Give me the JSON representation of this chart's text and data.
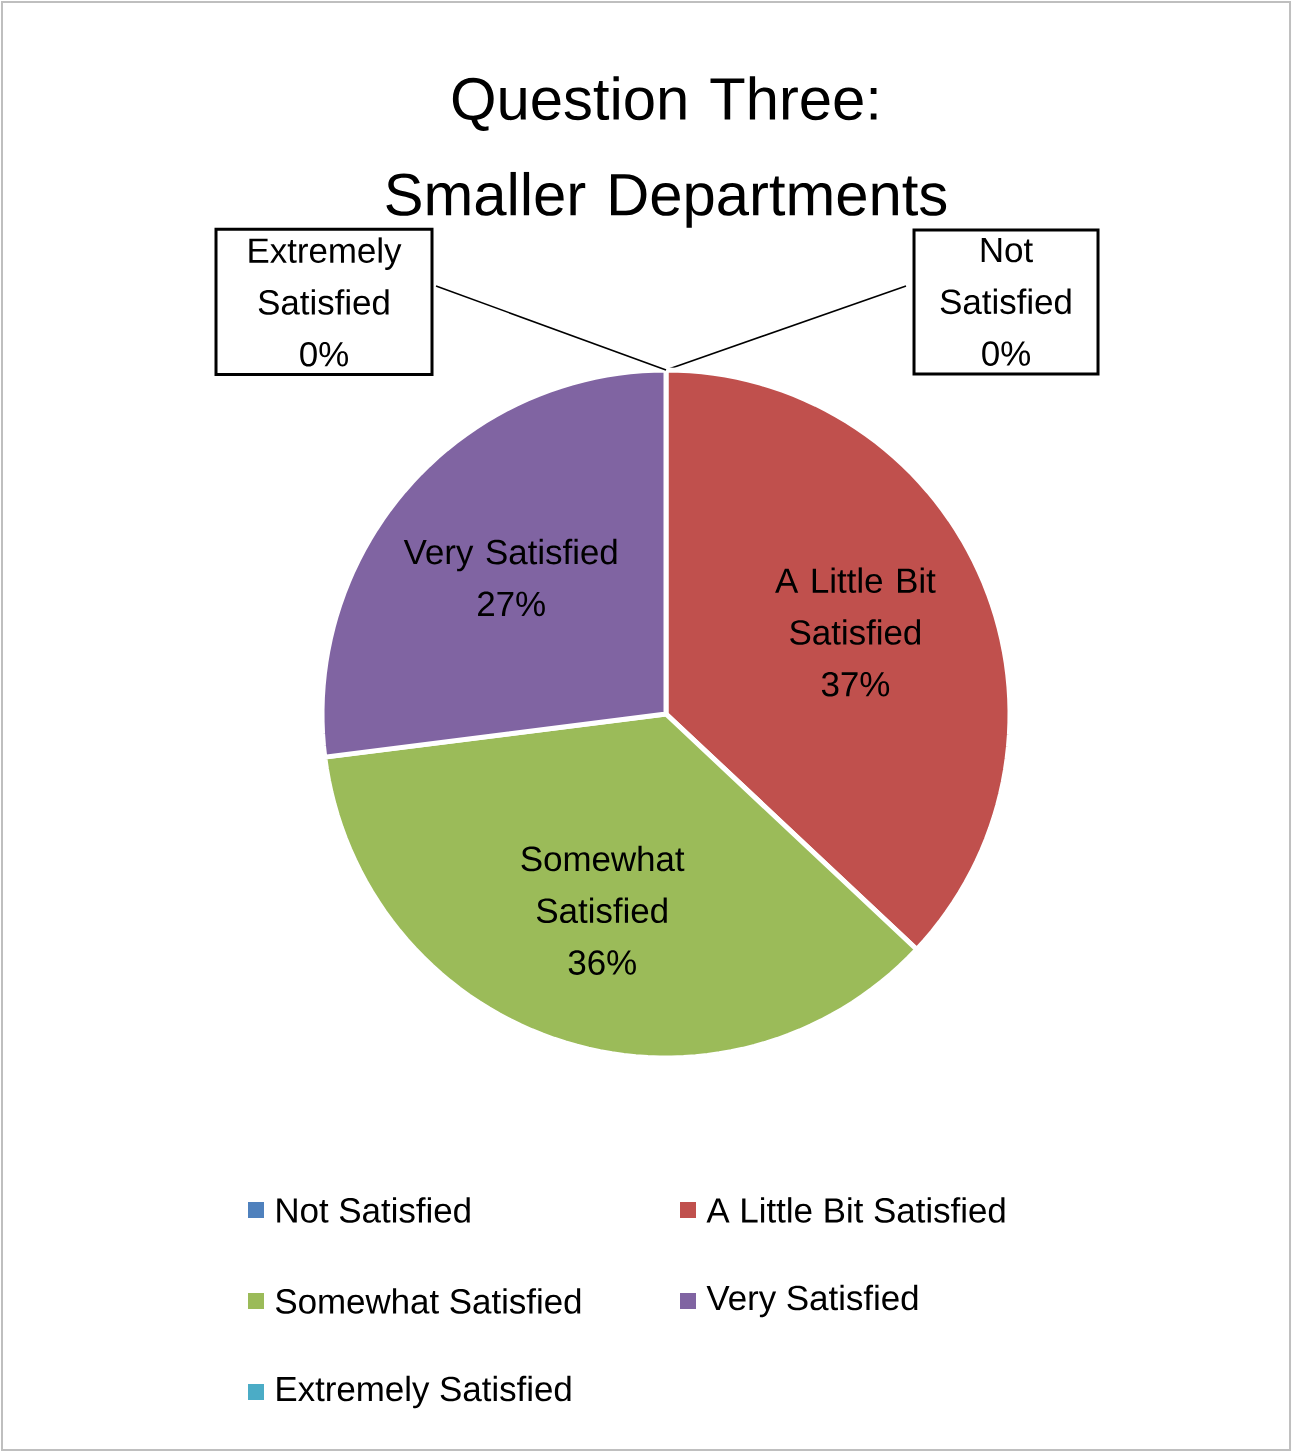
{
  "chart_data": {
    "type": "pie",
    "title": "Question Three: Smaller Departments",
    "categories": [
      "Not Satisfied",
      "A Little Bit Satisfied",
      "Somewhat Satisfied",
      "Very Satisfied",
      "Extremely Satisfied"
    ],
    "values": [
      0,
      37,
      36,
      27,
      0
    ],
    "value_labels": [
      "0%",
      "37%",
      "36%",
      "27%",
      "0%"
    ],
    "colors": [
      "#4f81bd",
      "#c0504d",
      "#9bbb59",
      "#8064a2",
      "#4bacc6"
    ],
    "legend": "bottom"
  }
}
